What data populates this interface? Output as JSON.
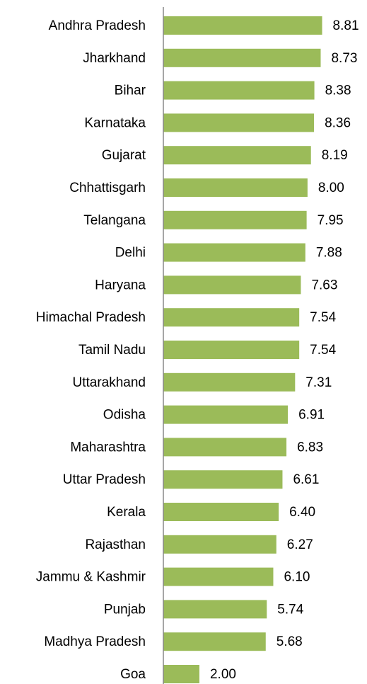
{
  "chart_data": {
    "type": "bar",
    "orientation": "horizontal",
    "categories": [
      "Andhra Pradesh",
      "Jharkhand",
      "Bihar",
      "Karnataka",
      "Gujarat",
      "Chhattisgarh",
      "Telangana",
      "Delhi",
      "Haryana",
      "Himachal Pradesh",
      "Tamil Nadu",
      "Uttarakhand",
      "Odisha",
      "Maharashtra",
      "Uttar Pradesh",
      "Kerala",
      "Rajasthan",
      "Jammu & Kashmir",
      "Punjab",
      "Madhya Pradesh",
      "Goa"
    ],
    "values": [
      8.81,
      8.73,
      8.38,
      8.36,
      8.19,
      8.0,
      7.95,
      7.88,
      7.63,
      7.54,
      7.54,
      7.31,
      6.91,
      6.83,
      6.61,
      6.4,
      6.27,
      6.1,
      5.74,
      5.68,
      2.0
    ],
    "value_labels": [
      "8.81",
      "8.73",
      "8.38",
      "8.36",
      "8.19",
      "8.00",
      "7.95",
      "7.88",
      "7.63",
      "7.54",
      "7.54",
      "7.31",
      "6.91",
      "6.83",
      "6.61",
      "6.40",
      "6.27",
      "6.10",
      "5.74",
      "5.68",
      "2.00"
    ],
    "color": "#9bbb59",
    "xlim": [
      0,
      11.3
    ]
  }
}
